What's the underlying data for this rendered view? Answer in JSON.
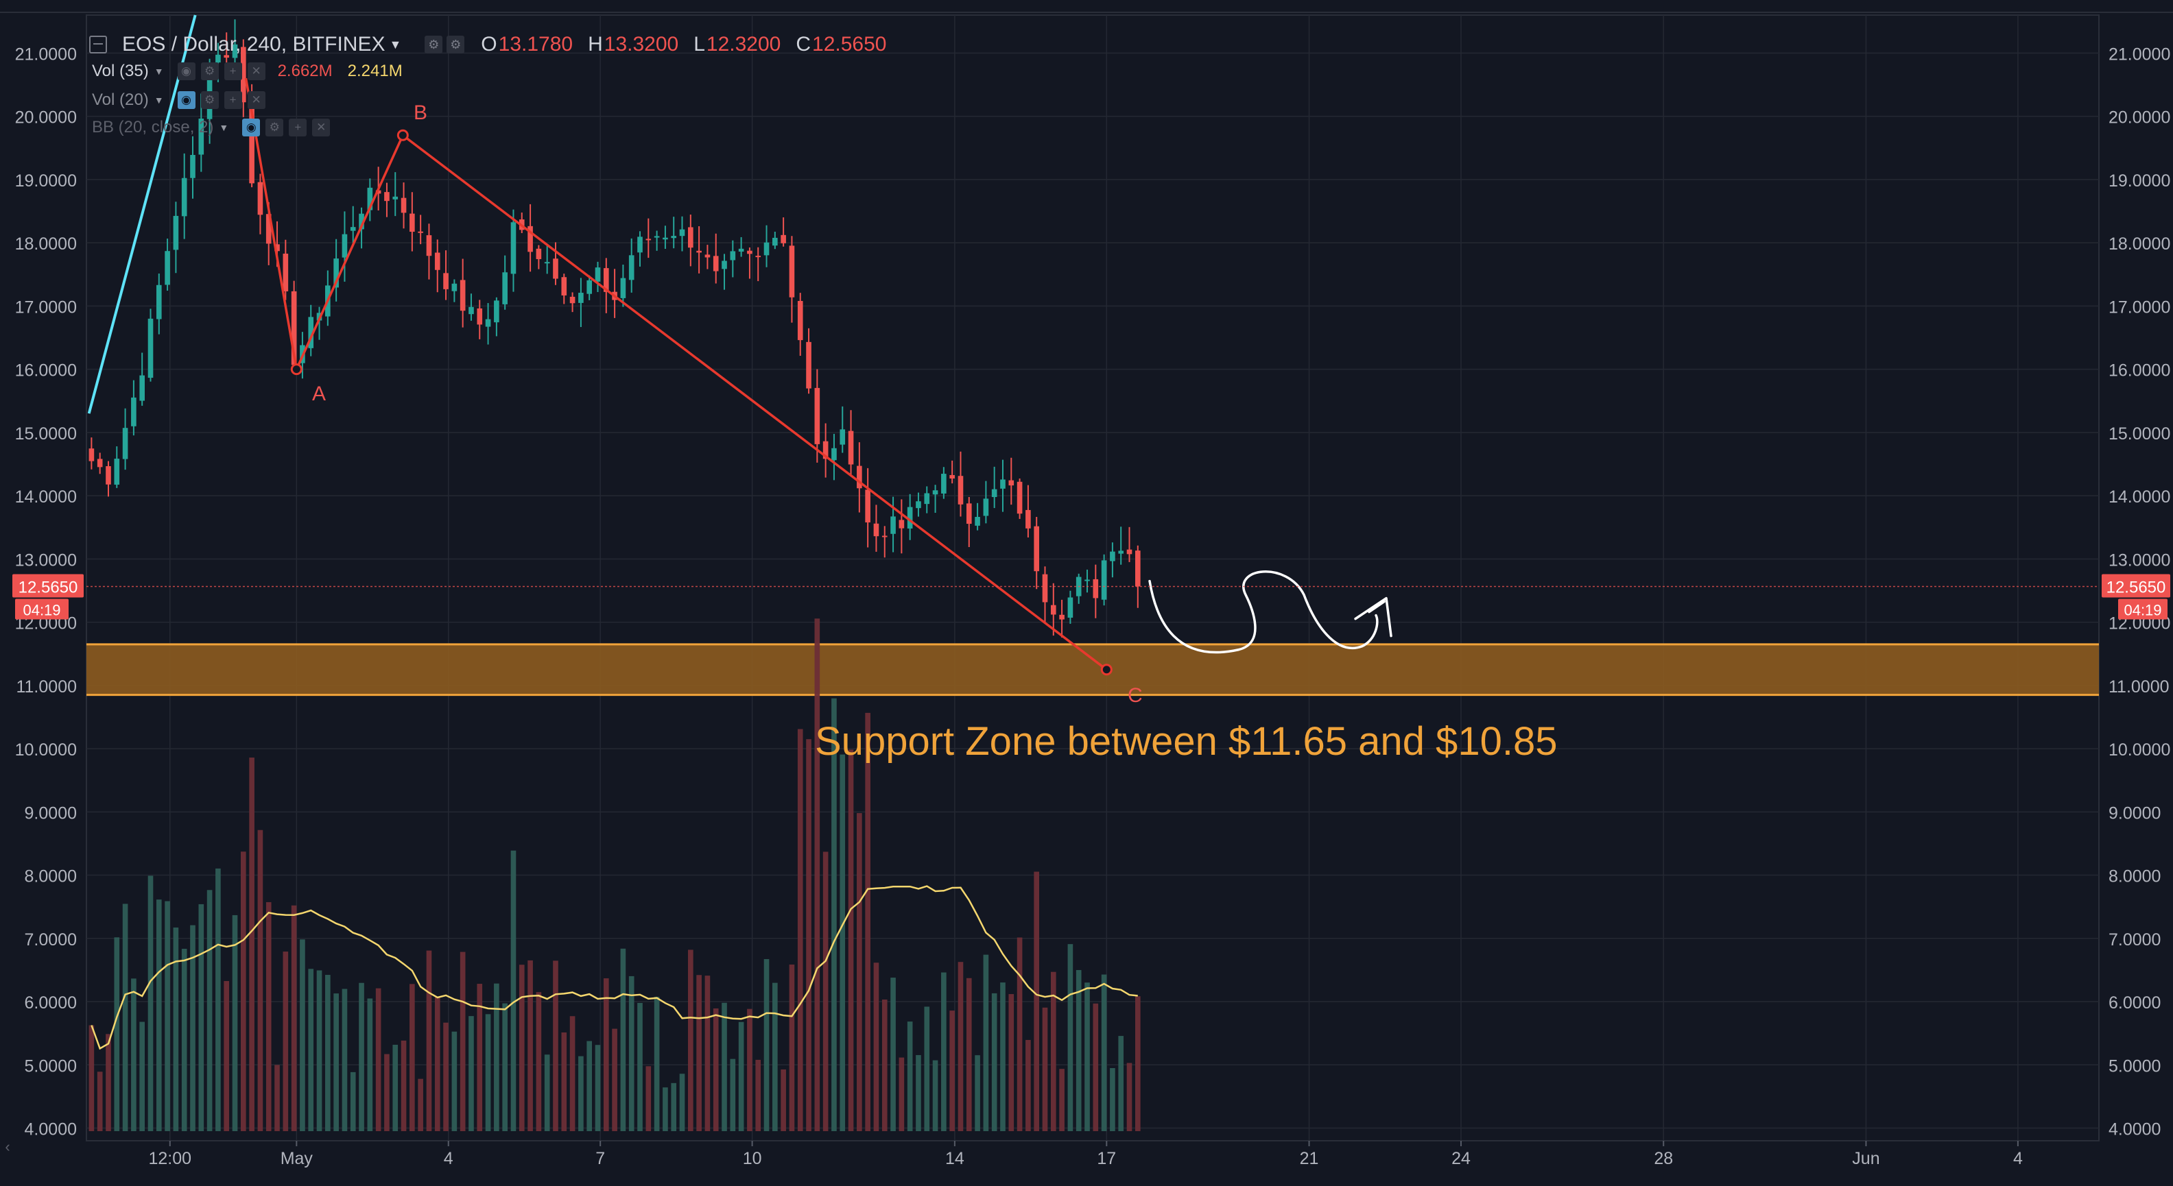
{
  "header": {
    "symbol": "EOS / Dollar, 240, BITFINEX",
    "ohlc": [
      {
        "label": "O",
        "value": "13.1780"
      },
      {
        "label": "H",
        "value": "13.3200"
      },
      {
        "label": "L",
        "value": "12.3200"
      },
      {
        "label": "C",
        "value": "12.5650"
      }
    ]
  },
  "indicators": {
    "vol35": {
      "name": "Vol (35)",
      "value_a": "2.662M",
      "value_b": "2.241M"
    },
    "vol20": {
      "name": "Vol (20)"
    },
    "bb": {
      "name": "BB (20, close, 2)"
    }
  },
  "price_badge": {
    "value": "12.5650",
    "countdown": "04:19"
  },
  "annotation": "Support Zone between $11.65 and $10.85",
  "wave_labels": {
    "a": "A",
    "b": "B",
    "c": "C"
  },
  "colors": {
    "background": "#131722",
    "up": "#26a69a",
    "down": "#ef5350",
    "grid": "#242833",
    "support_zone": "#8a5a20",
    "support_border": "#f0a33a",
    "wave_line": "#e8392e",
    "trend_line": "#5ee3f7",
    "volume_ma": "#f5d76e"
  },
  "chart_data": {
    "type": "candlestick",
    "interval_minutes": 240,
    "y_axis": {
      "ticks": [
        "4.0000",
        "5.0000",
        "6.0000",
        "7.0000",
        "8.0000",
        "9.0000",
        "10.0000",
        "11.0000",
        "12.0000",
        "13.0000",
        "14.0000",
        "15.0000",
        "16.0000",
        "17.0000",
        "18.0000",
        "19.0000",
        "20.0000",
        "21.0000"
      ],
      "range": [
        3.8,
        21.6
      ]
    },
    "x_axis": {
      "ticks": [
        {
          "label": "12:00",
          "day": -1.5
        },
        {
          "label": "May",
          "day": 1
        },
        {
          "label": "4",
          "day": 4
        },
        {
          "label": "7",
          "day": 7
        },
        {
          "label": "10",
          "day": 10
        },
        {
          "label": "14",
          "day": 14
        },
        {
          "label": "17",
          "day": 17
        },
        {
          "label": "21",
          "day": 21
        },
        {
          "label": "24",
          "day": 24
        },
        {
          "label": "28",
          "day": 28
        },
        {
          "label": "Jun",
          "day": 32
        },
        {
          "label": "4",
          "day": 35
        }
      ],
      "range_days": [
        -3.15,
        36.6
      ]
    },
    "close_anchors": [
      [
        -3.05,
        14.55
      ],
      [
        -2.7,
        14.3
      ],
      [
        -2.3,
        15.3
      ],
      [
        -2.0,
        16.2
      ],
      [
        -1.8,
        17.0
      ],
      [
        -1.55,
        17.9
      ],
      [
        -1.3,
        18.8
      ],
      [
        -1.1,
        19.1
      ],
      [
        -0.8,
        20.5
      ],
      [
        -0.6,
        21.3
      ],
      [
        -0.45,
        20.6
      ],
      [
        -0.3,
        21.2
      ],
      [
        -0.15,
        21.3
      ],
      [
        0.05,
        19.1
      ],
      [
        0.35,
        18.4
      ],
      [
        0.7,
        17.5
      ],
      [
        0.95,
        16.2
      ],
      [
        1.2,
        16.5
      ],
      [
        1.55,
        17.2
      ],
      [
        1.9,
        18.0
      ],
      [
        2.3,
        18.6
      ],
      [
        2.6,
        18.8
      ],
      [
        3.0,
        18.7
      ],
      [
        3.35,
        18.2
      ],
      [
        3.8,
        17.6
      ],
      [
        4.2,
        17.1
      ],
      [
        4.6,
        16.7
      ],
      [
        5.0,
        17.1
      ],
      [
        5.3,
        18.3
      ],
      [
        5.7,
        17.9
      ],
      [
        6.1,
        17.6
      ],
      [
        6.5,
        17.0
      ],
      [
        6.9,
        17.5
      ],
      [
        7.3,
        17.1
      ],
      [
        7.65,
        17.9
      ],
      [
        8.0,
        18.1
      ],
      [
        8.45,
        18.2
      ],
      [
        8.9,
        18.0
      ],
      [
        9.3,
        17.4
      ],
      [
        9.7,
        17.8
      ],
      [
        10.1,
        17.7
      ],
      [
        10.55,
        18.4
      ],
      [
        10.8,
        17.1
      ],
      [
        11.05,
        16.2
      ],
      [
        11.25,
        14.8
      ],
      [
        11.45,
        14.5
      ],
      [
        11.7,
        15.0
      ],
      [
        12.0,
        14.6
      ],
      [
        12.35,
        13.3
      ],
      [
        12.6,
        13.5
      ],
      [
        12.95,
        13.5
      ],
      [
        13.3,
        13.9
      ],
      [
        13.7,
        14.3
      ],
      [
        14.0,
        14.1
      ],
      [
        14.3,
        13.7
      ],
      [
        14.65,
        13.9
      ],
      [
        14.95,
        14.2
      ],
      [
        15.25,
        13.9
      ],
      [
        15.55,
        13.1
      ],
      [
        15.85,
        12.3
      ],
      [
        16.15,
        12.2
      ],
      [
        16.45,
        12.6
      ],
      [
        16.8,
        12.5
      ],
      [
        17.05,
        13.3
      ],
      [
        17.3,
        13.2
      ],
      [
        17.55,
        13.0
      ],
      [
        17.75,
        12.57
      ]
    ],
    "support_zone": {
      "high": 11.65,
      "low": 10.85
    },
    "abc_wave": [
      {
        "label": "A",
        "day": 1.0,
        "price": 16.0
      },
      {
        "label": "B",
        "day": 3.1,
        "price": 19.7
      },
      {
        "label": "C",
        "day": 17.0,
        "price": 11.25
      }
    ],
    "trend_line": [
      {
        "day": -3.1,
        "price": 15.3
      },
      {
        "day": -1.0,
        "price": 21.6
      }
    ],
    "last_price": 12.565
  }
}
